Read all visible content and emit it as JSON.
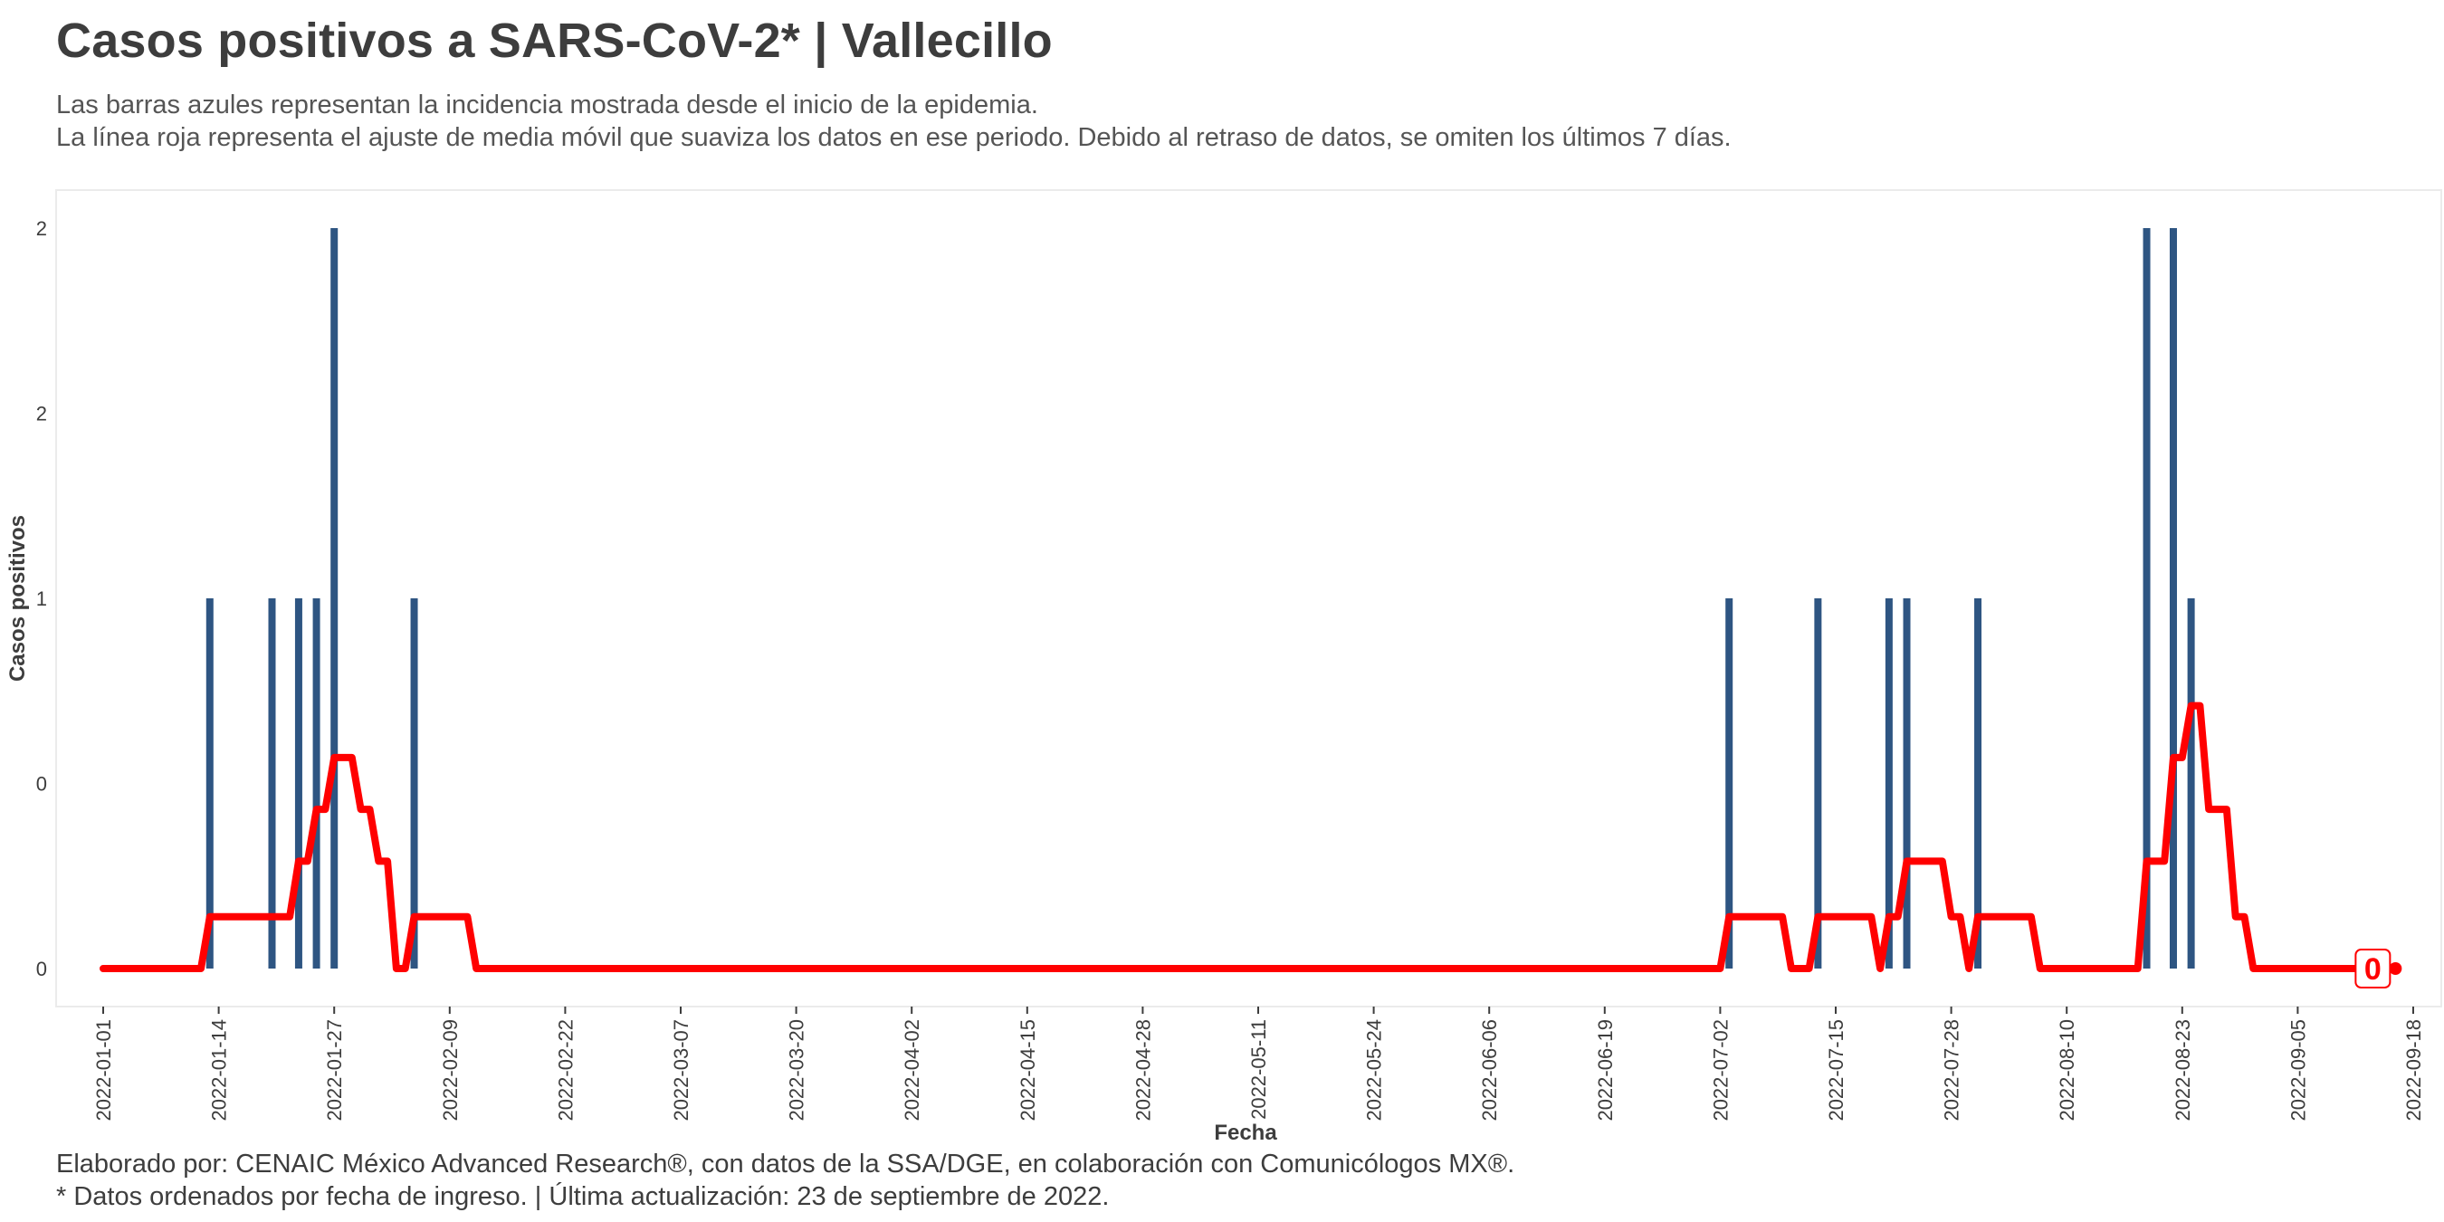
{
  "header": {
    "title": "Casos positivos a SARS-CoV-2* | Vallecillo",
    "subtitle_line1": "Las barras azules representan la incidencia mostrada desde el inicio de la epidemia.",
    "subtitle_line2": "La línea roja representa el ajuste de media móvil que suaviza los datos en ese periodo. Debido al retraso de datos, se omiten los últimos 7 días."
  },
  "footer": {
    "line1": "Elaborado por: CENAIC México Advanced Research®, con datos de la SSA/DGE, en colaboración con Comunicólogos MX®.",
    "line2": "* Datos ordenados por fecha de ingreso. | Última actualización: 23 de septiembre de 2022."
  },
  "colors": {
    "bars": "#2e5582",
    "line": "#ff0000",
    "text": "#3d3d3d"
  },
  "chart_data": {
    "type": "bar",
    "xlabel": "Fecha",
    "ylabel": "Casos positivos",
    "start_date": "2022-01-01",
    "end_date": "2022-09-18",
    "x_ticks": [
      "2022-01-01",
      "2022-01-14",
      "2022-01-27",
      "2022-02-09",
      "2022-02-22",
      "2022-03-07",
      "2022-03-20",
      "2022-04-02",
      "2022-04-15",
      "2022-04-28",
      "2022-05-11",
      "2022-05-24",
      "2022-06-06",
      "2022-06-19",
      "2022-07-02",
      "2022-07-15",
      "2022-07-28",
      "2022-08-10",
      "2022-08-23",
      "2022-09-05",
      "2022-09-18"
    ],
    "y_ticks": [
      0,
      0.5,
      1,
      1.5,
      2
    ],
    "y_tick_labels": [
      "0",
      "0",
      "1",
      "2",
      "2"
    ],
    "ylim": [
      0,
      2
    ],
    "grid": false,
    "bars": [
      {
        "date": "2022-01-13",
        "value": 1
      },
      {
        "date": "2022-01-20",
        "value": 1
      },
      {
        "date": "2022-01-23",
        "value": 1
      },
      {
        "date": "2022-01-25",
        "value": 1
      },
      {
        "date": "2022-01-27",
        "value": 2
      },
      {
        "date": "2022-02-05",
        "value": 1
      },
      {
        "date": "2022-07-03",
        "value": 1
      },
      {
        "date": "2022-07-13",
        "value": 1
      },
      {
        "date": "2022-07-21",
        "value": 1
      },
      {
        "date": "2022-07-23",
        "value": 1
      },
      {
        "date": "2022-07-31",
        "value": 1
      },
      {
        "date": "2022-08-19",
        "value": 2
      },
      {
        "date": "2022-08-22",
        "value": 2
      },
      {
        "date": "2022-08-24",
        "value": 1
      }
    ],
    "moving_average": [
      {
        "date": "2022-01-01",
        "value": 0
      },
      {
        "date": "2022-01-12",
        "value": 0
      },
      {
        "date": "2022-01-13",
        "value": 0.14
      },
      {
        "date": "2022-01-20",
        "value": 0.14
      },
      {
        "date": "2022-01-22",
        "value": 0.14
      },
      {
        "date": "2022-01-23",
        "value": 0.29
      },
      {
        "date": "2022-01-24",
        "value": 0.29
      },
      {
        "date": "2022-01-25",
        "value": 0.43
      },
      {
        "date": "2022-01-26",
        "value": 0.43
      },
      {
        "date": "2022-01-27",
        "value": 0.57
      },
      {
        "date": "2022-01-29",
        "value": 0.57
      },
      {
        "date": "2022-01-30",
        "value": 0.43
      },
      {
        "date": "2022-01-31",
        "value": 0.43
      },
      {
        "date": "2022-02-01",
        "value": 0.29
      },
      {
        "date": "2022-02-02",
        "value": 0.29
      },
      {
        "date": "2022-02-03",
        "value": 0
      },
      {
        "date": "2022-02-04",
        "value": 0
      },
      {
        "date": "2022-02-05",
        "value": 0.14
      },
      {
        "date": "2022-02-11",
        "value": 0.14
      },
      {
        "date": "2022-02-12",
        "value": 0
      },
      {
        "date": "2022-07-02",
        "value": 0
      },
      {
        "date": "2022-07-03",
        "value": 0.14
      },
      {
        "date": "2022-07-09",
        "value": 0.14
      },
      {
        "date": "2022-07-10",
        "value": 0
      },
      {
        "date": "2022-07-12",
        "value": 0
      },
      {
        "date": "2022-07-13",
        "value": 0.14
      },
      {
        "date": "2022-07-19",
        "value": 0.14
      },
      {
        "date": "2022-07-20",
        "value": 0
      },
      {
        "date": "2022-07-21",
        "value": 0.14
      },
      {
        "date": "2022-07-22",
        "value": 0.14
      },
      {
        "date": "2022-07-23",
        "value": 0.29
      },
      {
        "date": "2022-07-27",
        "value": 0.29
      },
      {
        "date": "2022-07-28",
        "value": 0.14
      },
      {
        "date": "2022-07-29",
        "value": 0.14
      },
      {
        "date": "2022-07-30",
        "value": 0
      },
      {
        "date": "2022-07-31",
        "value": 0.14
      },
      {
        "date": "2022-08-06",
        "value": 0.14
      },
      {
        "date": "2022-08-07",
        "value": 0
      },
      {
        "date": "2022-08-18",
        "value": 0
      },
      {
        "date": "2022-08-19",
        "value": 0.29
      },
      {
        "date": "2022-08-21",
        "value": 0.29
      },
      {
        "date": "2022-08-22",
        "value": 0.57
      },
      {
        "date": "2022-08-23",
        "value": 0.57
      },
      {
        "date": "2022-08-24",
        "value": 0.71
      },
      {
        "date": "2022-08-25",
        "value": 0.71
      },
      {
        "date": "2022-08-26",
        "value": 0.43
      },
      {
        "date": "2022-08-28",
        "value": 0.43
      },
      {
        "date": "2022-08-29",
        "value": 0.14
      },
      {
        "date": "2022-08-30",
        "value": 0.14
      },
      {
        "date": "2022-08-31",
        "value": 0
      },
      {
        "date": "2022-09-16",
        "value": 0
      }
    ],
    "end_label": "0"
  }
}
